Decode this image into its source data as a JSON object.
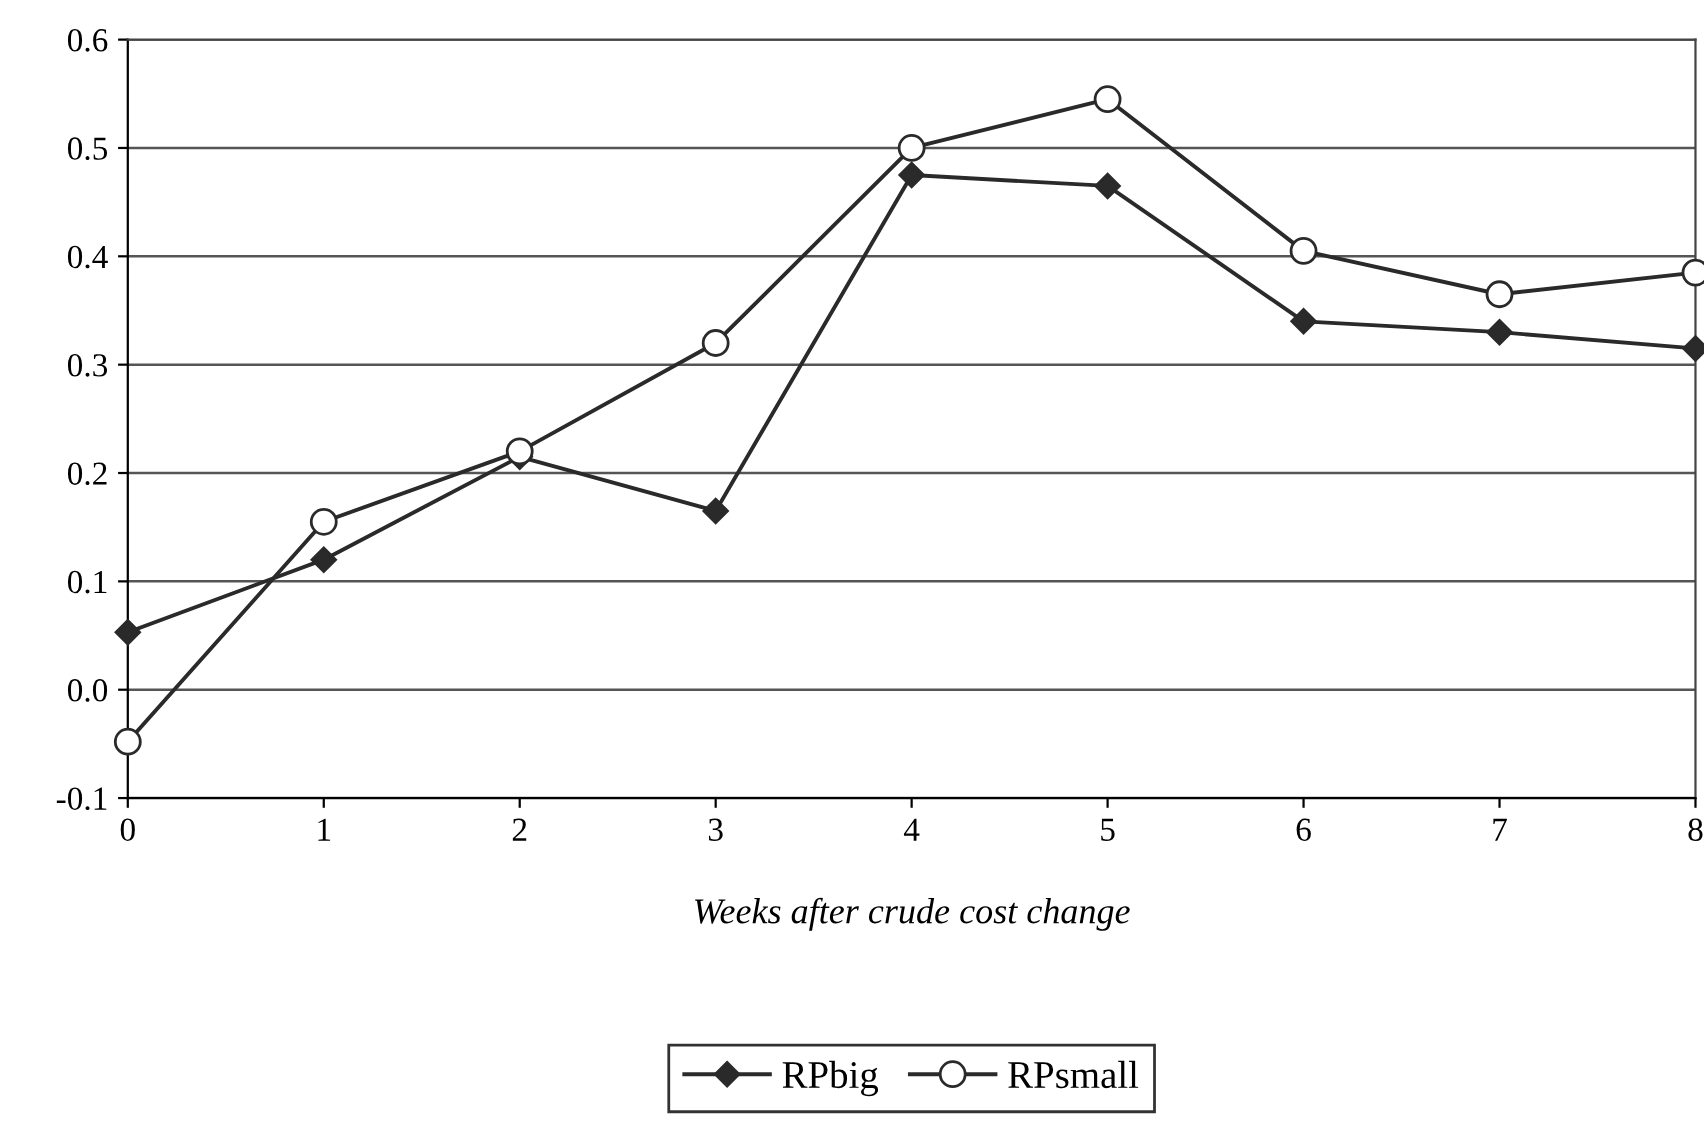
{
  "chart_data": {
    "type": "line",
    "xlabel": "Weeks after crude cost change",
    "x": [
      0,
      1,
      2,
      3,
      4,
      5,
      6,
      7,
      8
    ],
    "series": [
      {
        "name": "RPbig",
        "color": "#2a2a2a",
        "marker": "diamond",
        "values": [
          0.053,
          0.12,
          0.215,
          0.165,
          0.475,
          0.465,
          0.34,
          0.33,
          0.315
        ]
      },
      {
        "name": "RPsmall",
        "color": "#2a2a2a",
        "marker": "circle",
        "values": [
          -0.048,
          0.155,
          0.22,
          0.32,
          0.5,
          0.545,
          0.405,
          0.365,
          0.385
        ]
      }
    ],
    "xlim": [
      0,
      8
    ],
    "xticks": [
      0,
      1,
      2,
      3,
      4,
      5,
      6,
      7,
      8
    ],
    "ylim": [
      -0.1,
      0.6
    ],
    "yticks": [
      {
        "value": -0.1,
        "label": "-0.1"
      },
      {
        "value": 0,
        "label": "0.0"
      },
      0.1,
      0.2,
      0.3,
      0.4,
      0.5,
      0.6
    ],
    "grid": "y",
    "legend": "bottom",
    "line_style": "solid"
  }
}
